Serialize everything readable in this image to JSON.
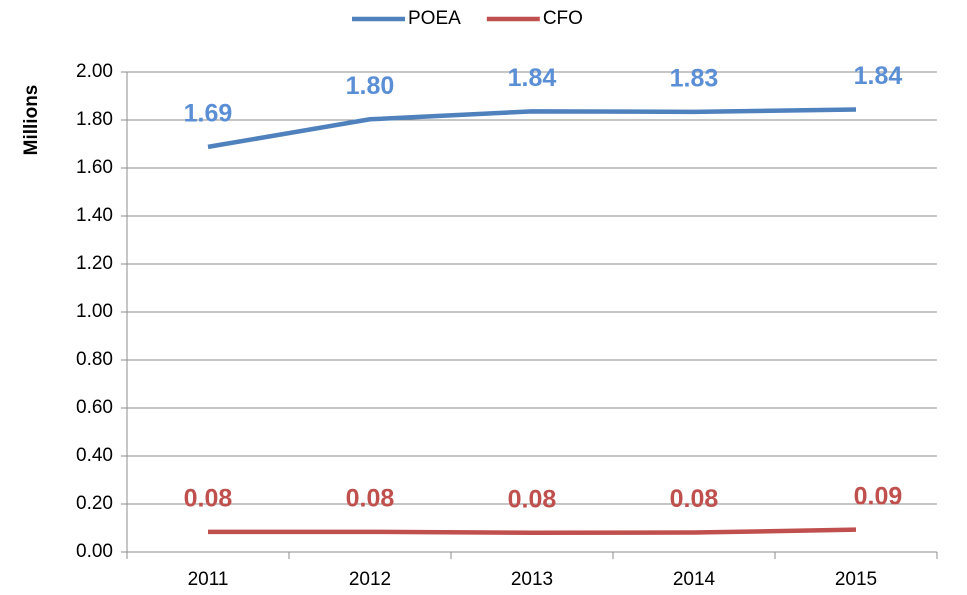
{
  "chart_data": {
    "type": "line",
    "y_label": "Millions",
    "categories": [
      "2011",
      "2012",
      "2013",
      "2014",
      "2015"
    ],
    "series": [
      {
        "name": "POEA",
        "color": "#4f81bd",
        "label_color": "#5a8fd6",
        "values": [
          1.688,
          1.803,
          1.836,
          1.834,
          1.844
        ],
        "value_labels": [
          "1.69",
          "1.80",
          "1.84",
          "1.83",
          "1.84"
        ]
      },
      {
        "name": "CFO",
        "color": "#c0504d",
        "label_color": "#c0504d",
        "values": [
          0.084,
          0.084,
          0.08,
          0.081,
          0.093
        ],
        "value_labels": [
          "0.08",
          "0.08",
          "0.08",
          "0.08",
          "0.09"
        ]
      }
    ],
    "ylim": [
      0,
      2
    ],
    "yticks": [
      {
        "value": 0,
        "label": "0.00"
      },
      {
        "value": 0.2,
        "label": "0.20"
      },
      {
        "value": 0.4,
        "label": "0.40"
      },
      {
        "value": 0.6,
        "label": "0.60"
      },
      {
        "value": 0.8,
        "label": "0.80"
      },
      {
        "value": 1,
        "label": "1.00"
      },
      {
        "value": 1.2,
        "label": "1.20"
      },
      {
        "value": 1.4,
        "label": "1.40"
      },
      {
        "value": 1.6,
        "label": "1.60"
      },
      {
        "value": 1.8,
        "label": "1.80"
      },
      {
        "value": 2,
        "label": "2.00"
      }
    ],
    "grid": true,
    "legend": "top"
  }
}
